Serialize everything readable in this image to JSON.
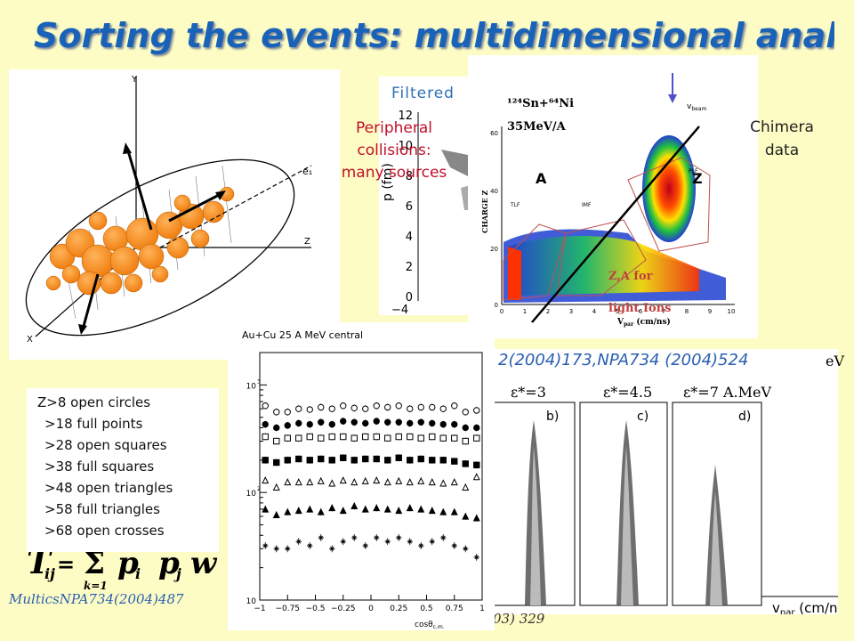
{
  "title": "Sorting the events: multidimensional analysis",
  "filtered_label": "Filtered",
  "peripheral_lines": [
    "Peripheral",
    "collisions:",
    "many sources"
  ],
  "chimera": {
    "label_lines": [
      "Chimera",
      "data"
    ],
    "reaction_line1": "¹²⁴Sn+⁶⁴Ni",
    "reaction_line2": "35MeV/A",
    "vbeam": "v",
    "vbeam_sub": "beam",
    "a_label": "A",
    "z_label": "Z",
    "plf": "PLF",
    "tlf": "TLF",
    "imf": "IMF",
    "za_label": "Z,A for",
    "light_ions": "light Ions",
    "ylabel": "CHARGE Z",
    "xlabel": "V",
    "xlabel_sub": "par",
    "xlabel_unit": " (cm/ns)",
    "yticks": [
      "0",
      "20",
      "40",
      "60"
    ],
    "xticks": [
      "0",
      "1",
      "2",
      "3",
      "4",
      "5",
      "6",
      "7",
      "8",
      "9",
      "10"
    ]
  },
  "filtered_axis": {
    "yticks": [
      "0",
      "2",
      "4",
      "6",
      "8",
      "10",
      "12"
    ],
    "xtick": "−4",
    "ylabel": "p (fm)"
  },
  "ellipsoid": {
    "y_axis": "Y",
    "x_axis": "X",
    "z_axis": "Z",
    "e1_label": "e₁"
  },
  "references": {
    "top": "2(2004)173,NPA734 (2004)524",
    "top_mev": "eV",
    "multics": "MulticsNPA734(2004)487",
    "bottom": "03) 329"
  },
  "epsilon_labels": [
    "ε*=3",
    "ε*=4.5",
    "ε*=7 A.MeV"
  ],
  "panel_letters": [
    "b)",
    "c)",
    "d)"
  ],
  "vpar_label": "v",
  "vpar_sub": "par",
  "vpar_unit": " (cm/ns)",
  "formula": {
    "lhs": "T",
    "lhs_sub": "ij",
    "eq": " = ",
    "sum": "Σ",
    "sum_lower": "k=1",
    "p": "p",
    "p_i": "i",
    "p_j": "j",
    "w": "w"
  },
  "legend": [
    "Z>8   open circles",
    ">18  full points",
    ">28  open squares",
    ">38  full squares",
    ">48  open triangles",
    ">58  full triangles",
    ">68  open crosses"
  ],
  "aucu": {
    "title": "Au+Cu 25 A MeV central",
    "xlabel": "cosθ",
    "xlabel_sub": "c.m.",
    "xticks": [
      "−1",
      "−0.75",
      "−0.5",
      "−0.25",
      "0",
      "0.25",
      "0.5",
      "0.75",
      "1"
    ],
    "ymajor": [
      "10",
      "10",
      "10"
    ],
    "yexp": [
      "3",
      "2",
      ""
    ]
  },
  "chart_data": {
    "type": "scatter",
    "title": "Au+Cu 25 A MeV central",
    "xlabel": "cosθc.m.",
    "ylabel": "",
    "xlim": [
      -1,
      1
    ],
    "ylim": [
      10,
      2000
    ],
    "log_y": true,
    "x": [
      -0.95,
      -0.85,
      -0.75,
      -0.65,
      -0.55,
      -0.45,
      -0.35,
      -0.25,
      -0.15,
      -0.05,
      0.05,
      0.15,
      0.25,
      0.35,
      0.45,
      0.55,
      0.65,
      0.75,
      0.85,
      0.95
    ],
    "series": [
      {
        "name": "Z>8   open circles",
        "marker": "open-circle",
        "values": [
          640,
          560,
          560,
          600,
          590,
          620,
          600,
          640,
          610,
          600,
          640,
          620,
          640,
          600,
          620,
          620,
          600,
          640,
          560,
          580
        ]
      },
      {
        "name": ">18  full points",
        "marker": "full-circle",
        "values": [
          430,
          400,
          420,
          440,
          430,
          450,
          430,
          460,
          450,
          440,
          460,
          450,
          450,
          440,
          450,
          440,
          430,
          430,
          400,
          400
        ]
      },
      {
        "name": ">28  open squares",
        "marker": "open-square",
        "values": [
          330,
          300,
          320,
          320,
          330,
          320,
          330,
          330,
          320,
          330,
          330,
          320,
          330,
          330,
          320,
          330,
          320,
          320,
          300,
          320
        ]
      },
      {
        "name": ">38  full squares",
        "marker": "full-square",
        "values": [
          200,
          190,
          200,
          205,
          200,
          205,
          200,
          210,
          200,
          205,
          205,
          200,
          210,
          200,
          205,
          200,
          200,
          195,
          185,
          180
        ]
      },
      {
        "name": ">48  open triangles",
        "marker": "open-triangle",
        "values": [
          130,
          112,
          125,
          125,
          125,
          128,
          122,
          130,
          125,
          128,
          130,
          125,
          128,
          125,
          128,
          125,
          122,
          125,
          112,
          140
        ]
      },
      {
        "name": ">58  full triangles",
        "marker": "full-triangle",
        "values": [
          70,
          62,
          66,
          68,
          70,
          66,
          72,
          68,
          75,
          70,
          72,
          70,
          68,
          72,
          70,
          68,
          66,
          66,
          60,
          58
        ]
      },
      {
        "name": ">68  open crosses",
        "marker": "open-cross",
        "values": [
          32,
          30,
          30,
          35,
          32,
          38,
          30,
          35,
          38,
          32,
          38,
          35,
          38,
          35,
          32,
          35,
          38,
          32,
          30,
          25
        ]
      }
    ]
  }
}
